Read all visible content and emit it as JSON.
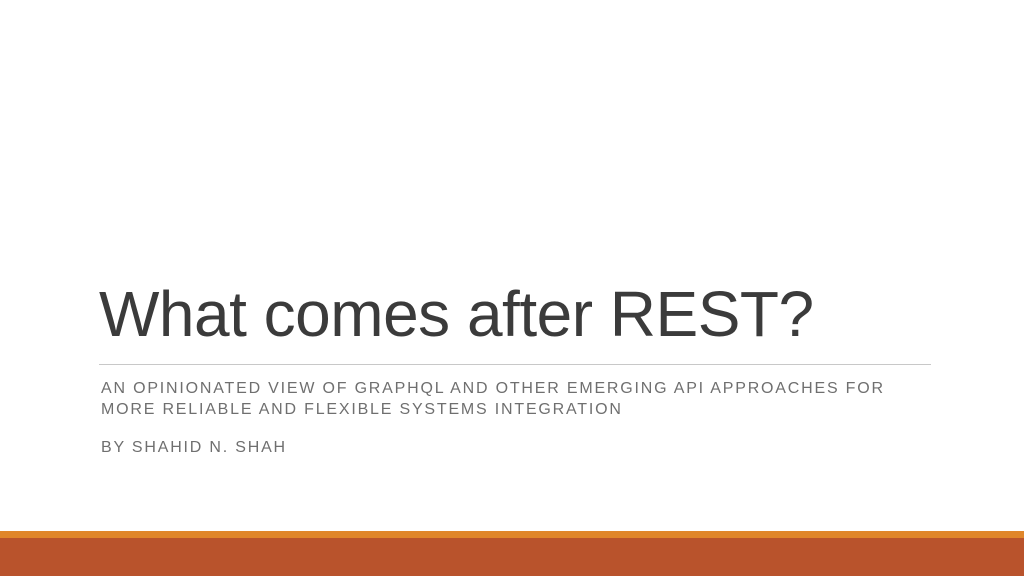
{
  "slide": {
    "title": "What comes after REST?",
    "subtitle": "AN OPINIONATED VIEW OF GRAPHQL AND OTHER EMERGING API APPROACHES FOR MORE RELIABLE AND FLEXIBLE SYSTEMS INTEGRATION",
    "byline": "BY SHAHID N. SHAH"
  },
  "colors": {
    "background": "#ffffff",
    "title_text": "#3b3b3b",
    "subtitle_text": "#6f6f6f",
    "divider": "#c8c8c8",
    "accent_stripe": "#e0862a",
    "footer_band": "#b9532c"
  }
}
